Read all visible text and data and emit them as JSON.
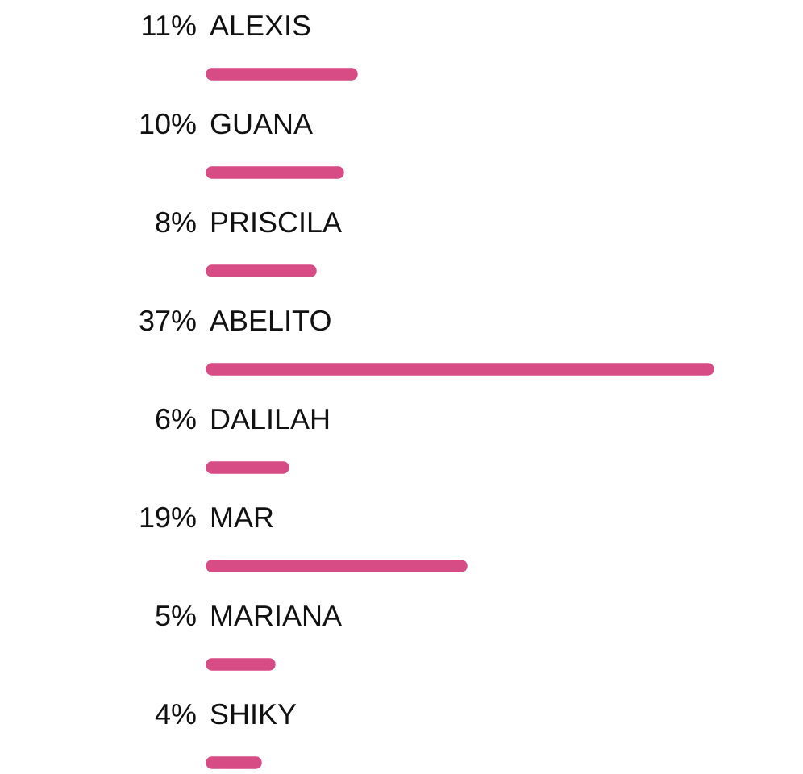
{
  "chart_data": {
    "type": "bar",
    "orientation": "horizontal",
    "categories": [
      "ALEXIS",
      "GUANA",
      "PRISCILA",
      "ABELITO",
      "DALILAH",
      "MAR",
      "MARIANA",
      "SHIKY"
    ],
    "values": [
      11,
      10,
      8,
      37,
      6,
      19,
      5,
      4
    ],
    "value_labels": [
      "11%",
      "10%",
      "8%",
      "37%",
      "6%",
      "19%",
      "5%",
      "4%"
    ],
    "color": "#d84c85",
    "legend": false
  }
}
